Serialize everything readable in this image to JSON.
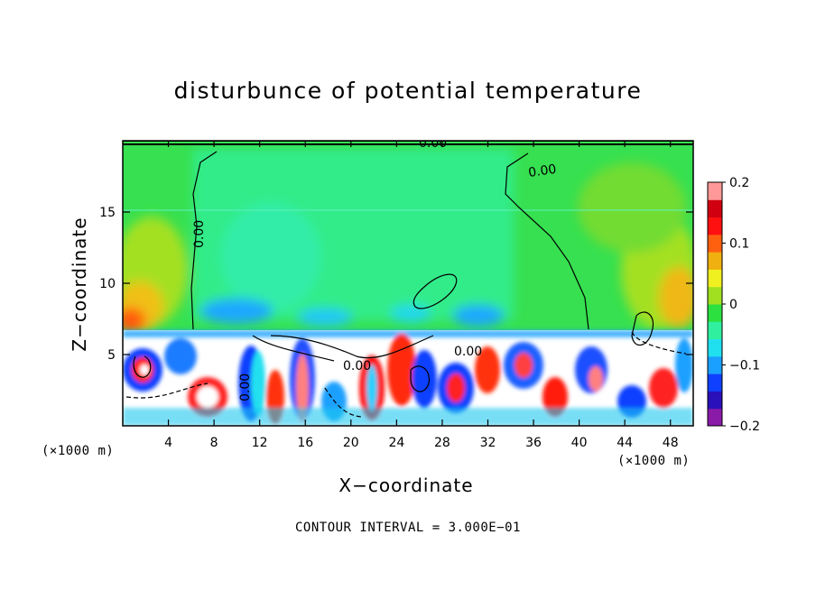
{
  "chart_data": {
    "type": "heatmap",
    "title": "disturbunce of potential temperature",
    "xlabel": "X−coordinate",
    "ylabel": "Z−coordinate",
    "x_unit_label_left": "(×1000 m)",
    "x_unit_label_right": "(×1000 m)",
    "xlim": [
      0,
      50
    ],
    "ylim": [
      0,
      20
    ],
    "x_ticks": [
      4,
      8,
      12,
      16,
      20,
      24,
      28,
      32,
      36,
      40,
      44,
      48
    ],
    "y_ticks": [
      5,
      10,
      15
    ],
    "colorbar": {
      "range": [
        -0.2,
        0.2
      ],
      "ticks": [
        {
          "value": 0.2,
          "label": "0.2"
        },
        {
          "value": 0.1,
          "label": "0.1"
        },
        {
          "value": 0,
          "label": "0"
        },
        {
          "value": -0.1,
          "label": "−0.1"
        },
        {
          "value": -0.2,
          "label": "−0.2"
        }
      ],
      "colors": [
        "#8a1aa8",
        "#2a10b8",
        "#1040ff",
        "#1aa0ff",
        "#20e0f0",
        "#30f0a0",
        "#2ce040",
        "#a0e020",
        "#f0f020",
        "#f0b010",
        "#ff6010",
        "#ff1010",
        "#d00010",
        "#ff9898"
      ]
    },
    "contour_labels": [
      "0.00",
      "0.00",
      "0.00",
      "0.00",
      "0.00",
      "0.00"
    ],
    "contour_interval_text": "CONTOUR INTERVAL = 3.000E−01"
  }
}
